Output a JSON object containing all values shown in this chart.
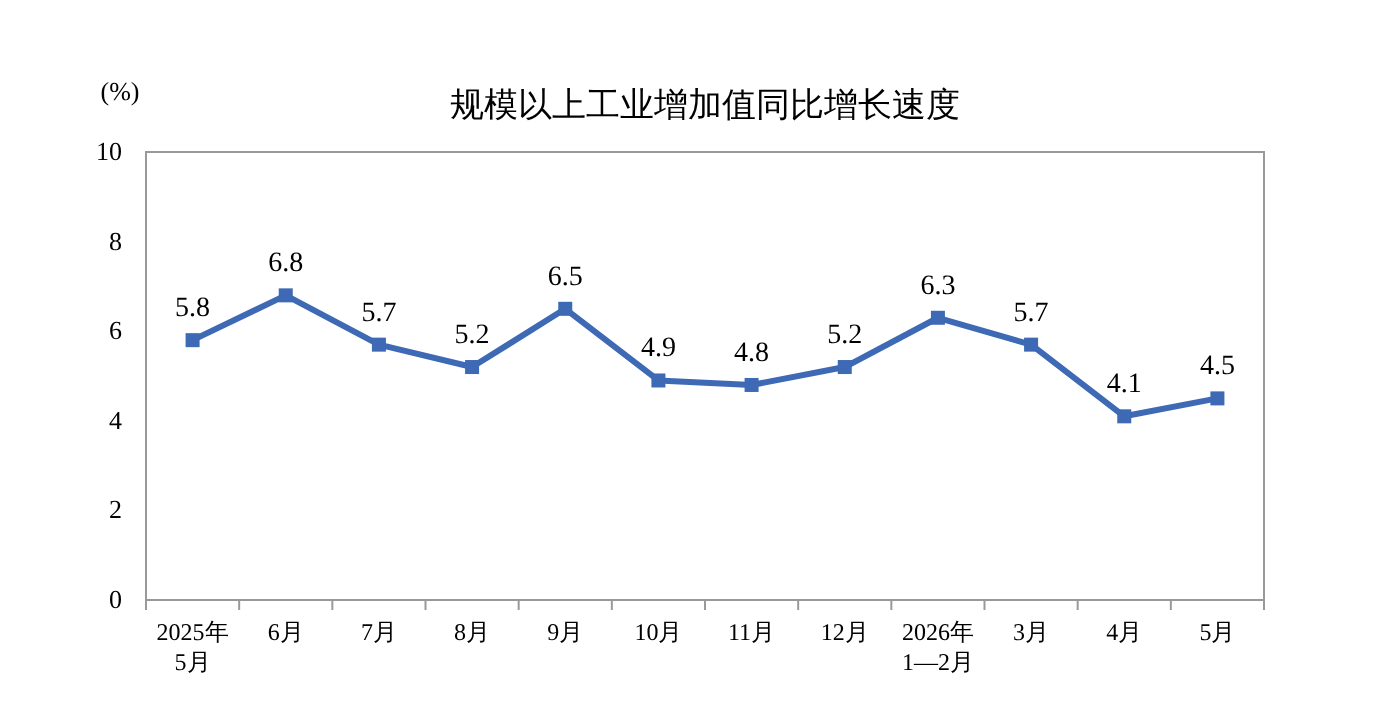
{
  "chart_data": {
    "type": "line",
    "title": "规模以上工业增加值同比增长速度",
    "ylabel": "(%)",
    "categories": [
      "2025年\n5月",
      "6月",
      "7月",
      "8月",
      "9月",
      "10月",
      "11月",
      "12月",
      "2026年\n1—2月",
      "3月",
      "4月",
      "5月"
    ],
    "series": [
      {
        "color": "#3d69b5",
        "values": [
          5.8,
          6.8,
          5.7,
          5.2,
          6.5,
          4.9,
          4.8,
          5.2,
          6.3,
          5.7,
          4.1,
          4.5
        ]
      }
    ],
    "ylim": [
      0,
      10
    ],
    "yticks": [
      0,
      2,
      4,
      6,
      8,
      10
    ],
    "marker": "square",
    "line_style": "solid",
    "data_labels": true
  }
}
